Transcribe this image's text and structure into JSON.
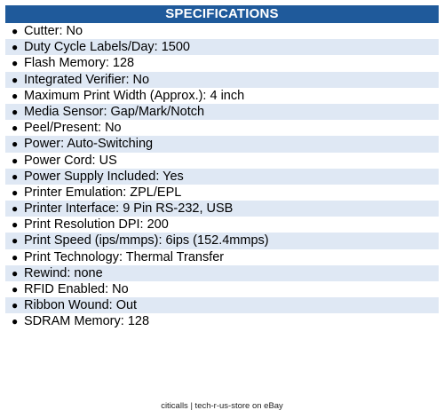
{
  "header": {
    "title": "SPECIFICATIONS"
  },
  "specs": [
    "Cutter: No",
    "Duty Cycle Labels/Day: 1500",
    "Flash Memory: 128",
    "Integrated Verifier: No",
    "Maximum Print Width (Approx.): 4 inch",
    "Media Sensor: Gap/Mark/Notch",
    "Peel/Present: No",
    "Power: Auto-Switching",
    "Power Cord: US",
    "Power Supply Included: Yes",
    "Printer Emulation: ZPL/EPL",
    "Printer Interface: 9 Pin RS-232, USB",
    "Print Resolution DPI: 200",
    "Print Speed (ips/mmps): 6ips (152.4mmps)",
    "Print Technology: Thermal Transfer",
    "Rewind: none",
    "RFID Enabled: No",
    "Ribbon Wound: Out",
    "SDRAM Memory: 128"
  ],
  "footer": {
    "text": "citicalls | tech-r-us-store on eBay"
  },
  "colors": {
    "header_bg": "#1f5a9b",
    "alt_row_bg": "#dfe8f4"
  }
}
